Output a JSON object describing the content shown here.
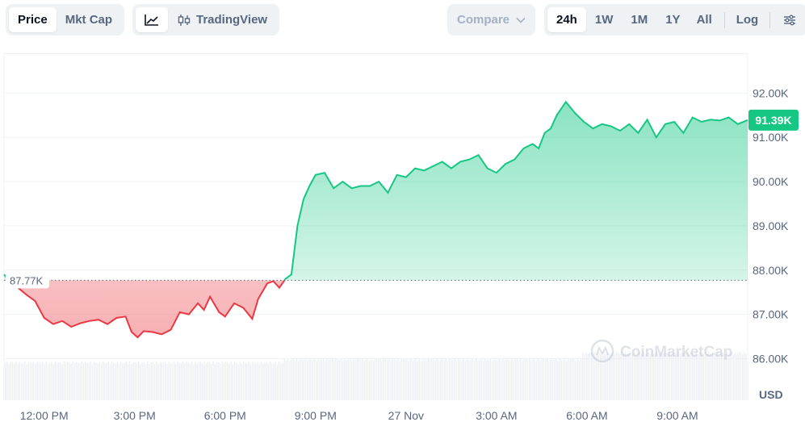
{
  "toolbar": {
    "metric_tabs": [
      {
        "label": "Price",
        "active": true
      },
      {
        "label": "Mkt Cap",
        "active": false
      }
    ],
    "chart_type": {
      "line_icon": "line-chart-icon",
      "tradingview_icon": "candlestick-icon",
      "tradingview_label": "TradingView"
    },
    "compare_label": "Compare",
    "range_tabs": [
      {
        "label": "24h",
        "active": true
      },
      {
        "label": "1W",
        "active": false
      },
      {
        "label": "1M",
        "active": false
      },
      {
        "label": "1Y",
        "active": false
      },
      {
        "label": "All",
        "active": false
      }
    ],
    "log_label": "Log",
    "settings_icon": "sliders-icon"
  },
  "watermark": {
    "text": "CoinMarketCap",
    "icon": "coinmarketcap-logo-icon"
  },
  "colors": {
    "up": "#16c784",
    "down": "#ea3943",
    "text": "#58667e",
    "grid": "#eff2f5"
  },
  "chart_data": {
    "type": "area",
    "currency": "USD",
    "baseline": 87.77,
    "baseline_label": "87.77K",
    "current": 91.39,
    "current_label": "91.39K",
    "y_ticks": [
      "92.00K",
      "91.00K",
      "90.00K",
      "89.00K",
      "88.00K",
      "87.00K",
      "86.00K"
    ],
    "y_tick_values": [
      92,
      91,
      90,
      89,
      88,
      87,
      86
    ],
    "ylim": [
      85.06,
      92.9
    ],
    "x_ticks": [
      "12:00 PM",
      "3:00 PM",
      "6:00 PM",
      "9:00 PM",
      "27 Nov",
      "3:00 AM",
      "6:00 AM",
      "9:00 AM"
    ],
    "x_tick_hours": [
      12,
      15,
      18,
      21,
      24,
      27,
      30,
      33
    ],
    "xlim_hours": [
      10.67,
      35.33
    ],
    "grid": true,
    "series": [
      {
        "unit": "K USD",
        "hours": [
          10.67,
          10.9,
          11.1,
          11.4,
          11.7,
          12.0,
          12.3,
          12.6,
          12.9,
          13.2,
          13.5,
          13.8,
          14.1,
          14.4,
          14.7,
          14.9,
          15.1,
          15.3,
          15.6,
          15.9,
          16.2,
          16.5,
          16.8,
          17.1,
          17.3,
          17.5,
          17.8,
          18.0,
          18.3,
          18.6,
          18.9,
          19.1,
          19.4,
          19.6,
          19.8,
          20.0,
          20.2,
          20.4,
          20.6,
          20.8,
          21.0,
          21.3,
          21.6,
          21.9,
          22.2,
          22.5,
          22.8,
          23.1,
          23.4,
          23.7,
          24.0,
          24.3,
          24.6,
          24.9,
          25.2,
          25.5,
          25.8,
          26.1,
          26.4,
          26.7,
          27.0,
          27.3,
          27.6,
          27.9,
          28.2,
          28.4,
          28.6,
          28.8,
          29.0,
          29.3,
          29.6,
          29.9,
          30.2,
          30.5,
          30.8,
          31.1,
          31.4,
          31.7,
          32.0,
          32.3,
          32.6,
          32.9,
          33.2,
          33.5,
          33.8,
          34.1,
          34.4,
          34.7,
          35.0,
          35.33
        ],
        "price_k": [
          87.9,
          87.72,
          87.62,
          87.45,
          87.3,
          86.92,
          86.78,
          86.85,
          86.72,
          86.8,
          86.85,
          86.88,
          86.78,
          86.92,
          86.95,
          86.6,
          86.48,
          86.62,
          86.6,
          86.55,
          86.65,
          87.05,
          87.0,
          87.25,
          87.1,
          87.4,
          87.05,
          86.95,
          87.25,
          87.15,
          86.9,
          87.35,
          87.7,
          87.75,
          87.6,
          87.8,
          87.9,
          89.0,
          89.6,
          89.9,
          90.15,
          90.2,
          89.85,
          90.0,
          89.85,
          89.9,
          89.9,
          90.0,
          89.75,
          90.15,
          90.1,
          90.3,
          90.25,
          90.35,
          90.45,
          90.3,
          90.45,
          90.5,
          90.6,
          90.3,
          90.2,
          90.4,
          90.5,
          90.75,
          90.85,
          90.75,
          91.1,
          91.2,
          91.5,
          91.8,
          91.55,
          91.35,
          91.2,
          91.3,
          91.25,
          91.15,
          91.3,
          91.1,
          91.4,
          91.0,
          91.3,
          91.35,
          91.1,
          91.45,
          91.35,
          91.4,
          91.38,
          91.45,
          91.3,
          91.39
        ]
      }
    ]
  }
}
